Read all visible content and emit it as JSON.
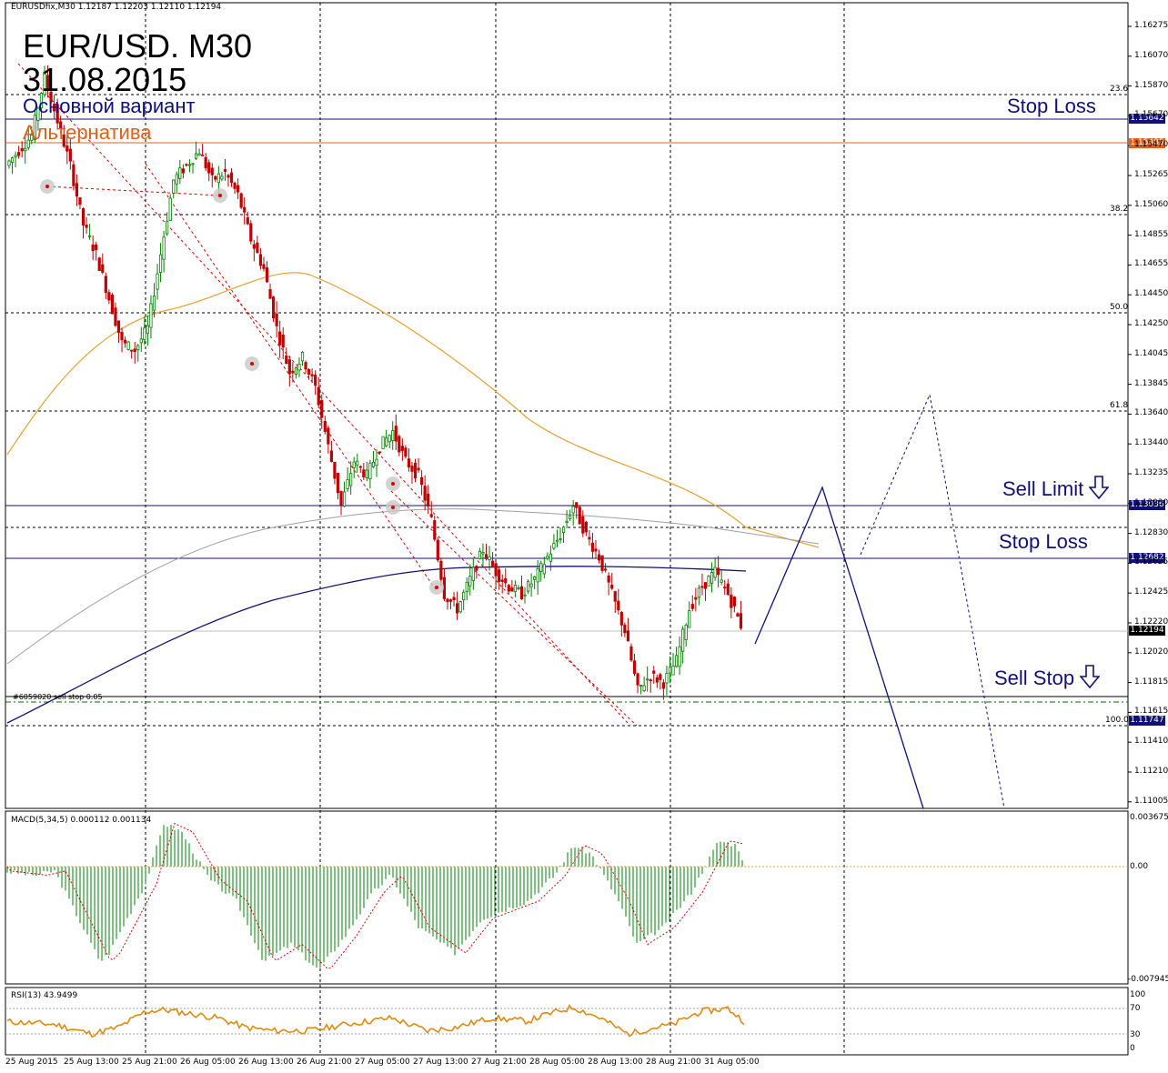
{
  "header": {
    "symbol_info": "EURUSDfix,M30  1.12187 1.12203 1.12110 1.12194",
    "title_line1": "EUR/USD. M30",
    "title_line2": "31.08.2015",
    "main_variant": "Основной вариант",
    "alt_variant": "Альтернатива"
  },
  "levels": {
    "stop_loss_top_label": "Stop Loss",
    "sell_limit_label": "Sell Limit",
    "stop_loss_mid_label": "Stop Loss",
    "sell_stop_label": "Sell Stop",
    "order_comment": "#6059020 sell stop 0.05",
    "stop_loss_top_price": "1.15642",
    "alt_price": "1.15485",
    "sell_limit_price": "1.13036",
    "stop_loss_mid_price": "1.12682",
    "current_price": "1.12194",
    "sell_stop_price": "1.11747"
  },
  "fib_labels": {
    "f236": "23.6",
    "f382": "38.2",
    "f500": "50.0",
    "f618": "61.8",
    "f1000": "100.0"
  },
  "indicators": {
    "macd_label": "MACD(5,34,5) 0.000112 0.001134",
    "macd_top": "0.003675",
    "macd_zero": "0.00",
    "macd_bottom": "-0.007945",
    "rsi_label": "RSI(13) 43.9499",
    "rsi_ticks": [
      "100",
      "70",
      "30",
      "0"
    ]
  },
  "colors": {
    "bull_candle": "#008000",
    "bear_candle": "#c00000",
    "ma_orange": "#e8a030",
    "ma_navy": "#10107a",
    "ma_gray": "#a0a0a0",
    "level_blue": "#10107a",
    "level_orange": "#e0601a",
    "macd_hist": "#008000",
    "macd_signal": "#e00000",
    "rsi_line": "#e08a10"
  },
  "chart_data": {
    "type": "candlestick",
    "symbol": "EURUSDfix",
    "timeframe": "M30",
    "y_ticks": [
      "1.16275",
      "1.16070",
      "1.15870",
      "1.15670",
      "1.15470",
      "1.15265",
      "1.15060",
      "1.14855",
      "1.14655",
      "1.14450",
      "1.14250",
      "1.14045",
      "1.13845",
      "1.13640",
      "1.13440",
      "1.13235",
      "1.13030",
      "1.12830",
      "1.12625",
      "1.12425",
      "1.12220",
      "1.12020",
      "1.11815",
      "1.11615",
      "1.11410",
      "1.11210",
      "1.11005"
    ],
    "x_ticks": [
      "25 Aug 2015",
      "25 Aug 13:00",
      "25 Aug 21:00",
      "26 Aug 05:00",
      "26 Aug 13:00",
      "26 Aug 21:00",
      "27 Aug 05:00",
      "27 Aug 13:00",
      "27 Aug 21:00",
      "28 Aug 05:00",
      "28 Aug 13:00",
      "28 Aug 21:00",
      "31 Aug 05:00"
    ],
    "ylim": [
      1.1095,
      1.164
    ],
    "levels": [
      1.15642,
      1.15485,
      1.13036,
      1.12682,
      1.12194,
      1.11747
    ],
    "fibonacci": {
      "23.6": 1.1578,
      "38.2": 1.1512,
      "50.0": 1.1446,
      "61.8": 1.138,
      "100.0": 1.1166
    },
    "close_path": [
      1.153,
      1.154,
      1.155,
      1.159,
      1.156,
      1.153,
      1.149,
      1.147,
      1.144,
      1.141,
      1.1405,
      1.142,
      1.147,
      1.152,
      1.153,
      1.154,
      1.152,
      1.1525,
      1.151,
      1.148,
      1.146,
      1.142,
      1.139,
      1.14,
      1.138,
      1.134,
      1.13,
      1.133,
      1.132,
      1.134,
      1.135,
      1.133,
      1.132,
      1.129,
      1.124,
      1.123,
      1.125,
      1.127,
      1.1255,
      1.1245,
      1.124,
      1.125,
      1.1265,
      1.128,
      1.13,
      1.128,
      1.1265,
      1.124,
      1.1215,
      1.1175,
      1.1185,
      1.118,
      1.1195,
      1.123,
      1.1245,
      1.1255,
      1.124,
      1.1219
    ],
    "projection_main": [
      [
        1.122,
        1.1312
      ],
      [
        1.1312,
        1.11
      ]
    ],
    "projection_alt": [
      [
        1.1265,
        1.1375
      ],
      [
        1.1375,
        1.11
      ]
    ],
    "macd": {
      "ylim": [
        -0.007945,
        0.003675
      ]
    },
    "rsi": {
      "ylim": [
        0,
        100
      ],
      "levels": [
        70,
        30
      ]
    }
  }
}
